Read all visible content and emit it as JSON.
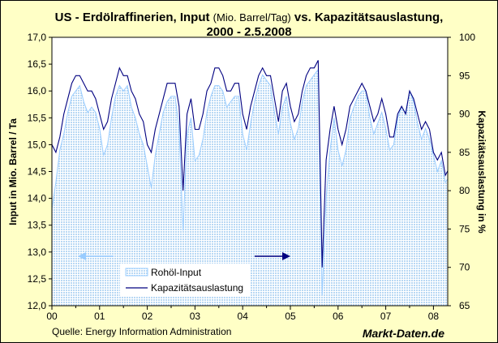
{
  "chart_data": {
    "type": "area",
    "title_main": "US - Erdölraffinerien, Input",
    "title_unit": "(Mio. Barrel/Tag)",
    "title_rest": "vs. Kapazitätsauslastung,",
    "title_line2": "2000 - 2.5.2008",
    "ylabel_left": "Input in Mio. Barrel / Ta",
    "ylabel_right": "Kapazitätsauslastung in %",
    "ylim_left": [
      12.0,
      17.0
    ],
    "ylim_right": [
      65,
      100
    ],
    "yticks_left": [
      "17,0",
      "16,5",
      "16,0",
      "15,5",
      "15,0",
      "14,5",
      "14,0",
      "13,5",
      "13,0",
      "12,5",
      "12,0"
    ],
    "yticks_right": [
      "100",
      "95",
      "90",
      "85",
      "80",
      "75",
      "70",
      "65"
    ],
    "xticks": [
      "00",
      "01",
      "02",
      "03",
      "04",
      "05",
      "06",
      "07",
      "08"
    ],
    "x_start": "2000-01",
    "x_step": "month",
    "grid": false,
    "legend_position": "bottom-left",
    "colors": {
      "background": "#ffffc6",
      "input": "#99ccff",
      "utilization": "#000080",
      "plot": "#ffffff"
    },
    "series": [
      {
        "name": "Rohöl-Input",
        "axis": "left",
        "style": "area",
        "values": [
          13.8,
          14.3,
          14.9,
          15.2,
          15.6,
          15.9,
          16.0,
          16.1,
          15.8,
          15.6,
          15.7,
          15.6,
          15.3,
          14.8,
          15.0,
          15.5,
          15.9,
          16.1,
          16.0,
          16.1,
          15.7,
          15.5,
          15.2,
          15.0,
          14.6,
          14.2,
          14.8,
          15.2,
          15.6,
          15.8,
          15.9,
          15.9,
          15.3,
          13.4,
          15.2,
          15.5,
          14.7,
          14.8,
          15.1,
          15.6,
          15.9,
          16.1,
          16.1,
          16.0,
          15.7,
          15.8,
          15.9,
          15.9,
          15.2,
          14.9,
          15.4,
          15.8,
          16.1,
          16.3,
          16.2,
          16.1,
          15.6,
          15.2,
          15.7,
          15.9,
          15.4,
          15.1,
          15.3,
          15.8,
          16.1,
          16.2,
          16.3,
          16.4,
          12.2,
          14.0,
          14.9,
          15.5,
          14.9,
          14.6,
          14.9,
          15.5,
          15.7,
          15.9,
          16.0,
          16.0,
          15.5,
          15.2,
          15.4,
          15.6,
          15.3,
          14.9,
          15.0,
          15.5,
          15.7,
          15.6,
          16.0,
          15.8,
          15.4,
          15.1,
          15.3,
          15.1,
          14.8,
          14.5,
          14.7,
          14.3,
          14.4
        ]
      },
      {
        "name": "Kapazitätsauslastung",
        "axis": "right",
        "style": "line",
        "values": [
          86,
          85,
          87,
          90,
          92,
          94,
          95,
          95,
          94,
          93,
          93,
          92,
          90,
          88,
          89,
          92,
          94,
          96,
          95,
          95,
          93,
          92,
          90,
          89,
          86,
          85,
          88,
          90,
          92,
          94,
          94,
          94,
          91,
          80,
          90,
          92,
          88,
          88,
          90,
          93,
          94,
          96,
          96,
          95,
          93,
          93,
          94,
          94,
          90,
          88,
          91,
          93,
          95,
          96,
          95,
          95,
          92,
          89,
          93,
          94,
          91,
          89,
          90,
          93,
          95,
          96,
          96,
          97,
          70,
          84,
          88,
          91,
          88,
          86,
          88,
          91,
          92,
          93,
          94,
          93,
          91,
          89,
          90,
          92,
          90,
          87,
          87,
          90,
          91,
          90,
          93,
          92,
          90,
          88,
          89,
          88,
          85,
          84,
          85,
          82,
          83
        ]
      }
    ]
  },
  "footer": {
    "source": "Quelle: Energy Information Administration",
    "brand": "Markt-Daten.de"
  }
}
